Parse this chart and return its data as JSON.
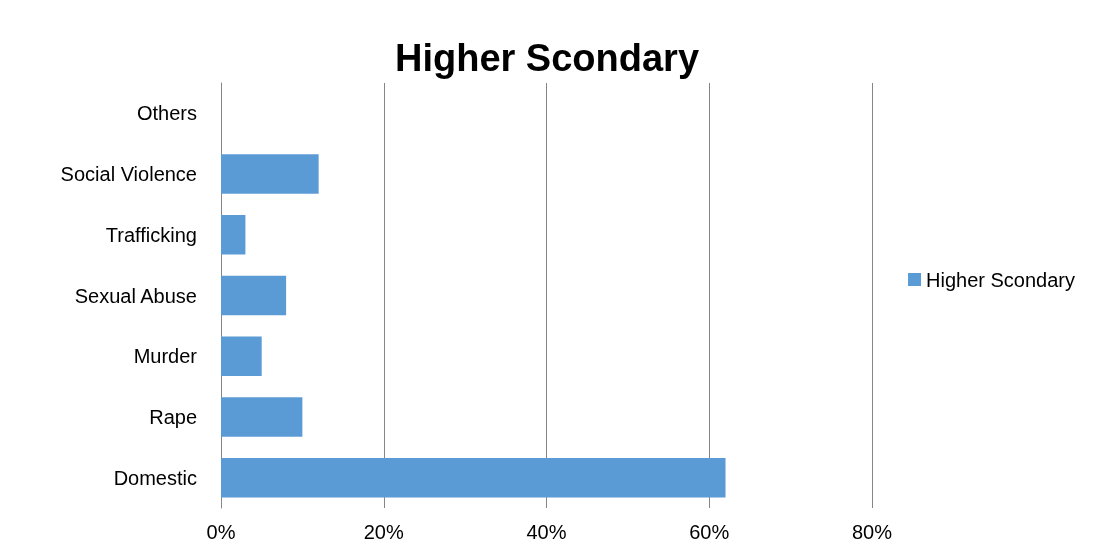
{
  "chart_data": {
    "type": "bar",
    "orientation": "horizontal",
    "title": "Higher Scondary",
    "categories": [
      "Others",
      "Social Violence",
      "Trafficking",
      "Sexual Abuse",
      "Murder",
      "Rape",
      "Domestic"
    ],
    "series": [
      {
        "name": "Higher Scondary",
        "color": "#5b9bd5",
        "values": [
          0,
          12,
          3,
          8,
          5,
          10,
          62
        ]
      }
    ],
    "xlim": [
      0,
      80
    ],
    "xticks": [
      {
        "value": 0,
        "label": "0%"
      },
      {
        "value": 20,
        "label": "20%"
      },
      {
        "value": 40,
        "label": "40%"
      },
      {
        "value": 60,
        "label": "60%"
      },
      {
        "value": 80,
        "label": "80%"
      }
    ],
    "grid": "x",
    "legend": "right"
  }
}
